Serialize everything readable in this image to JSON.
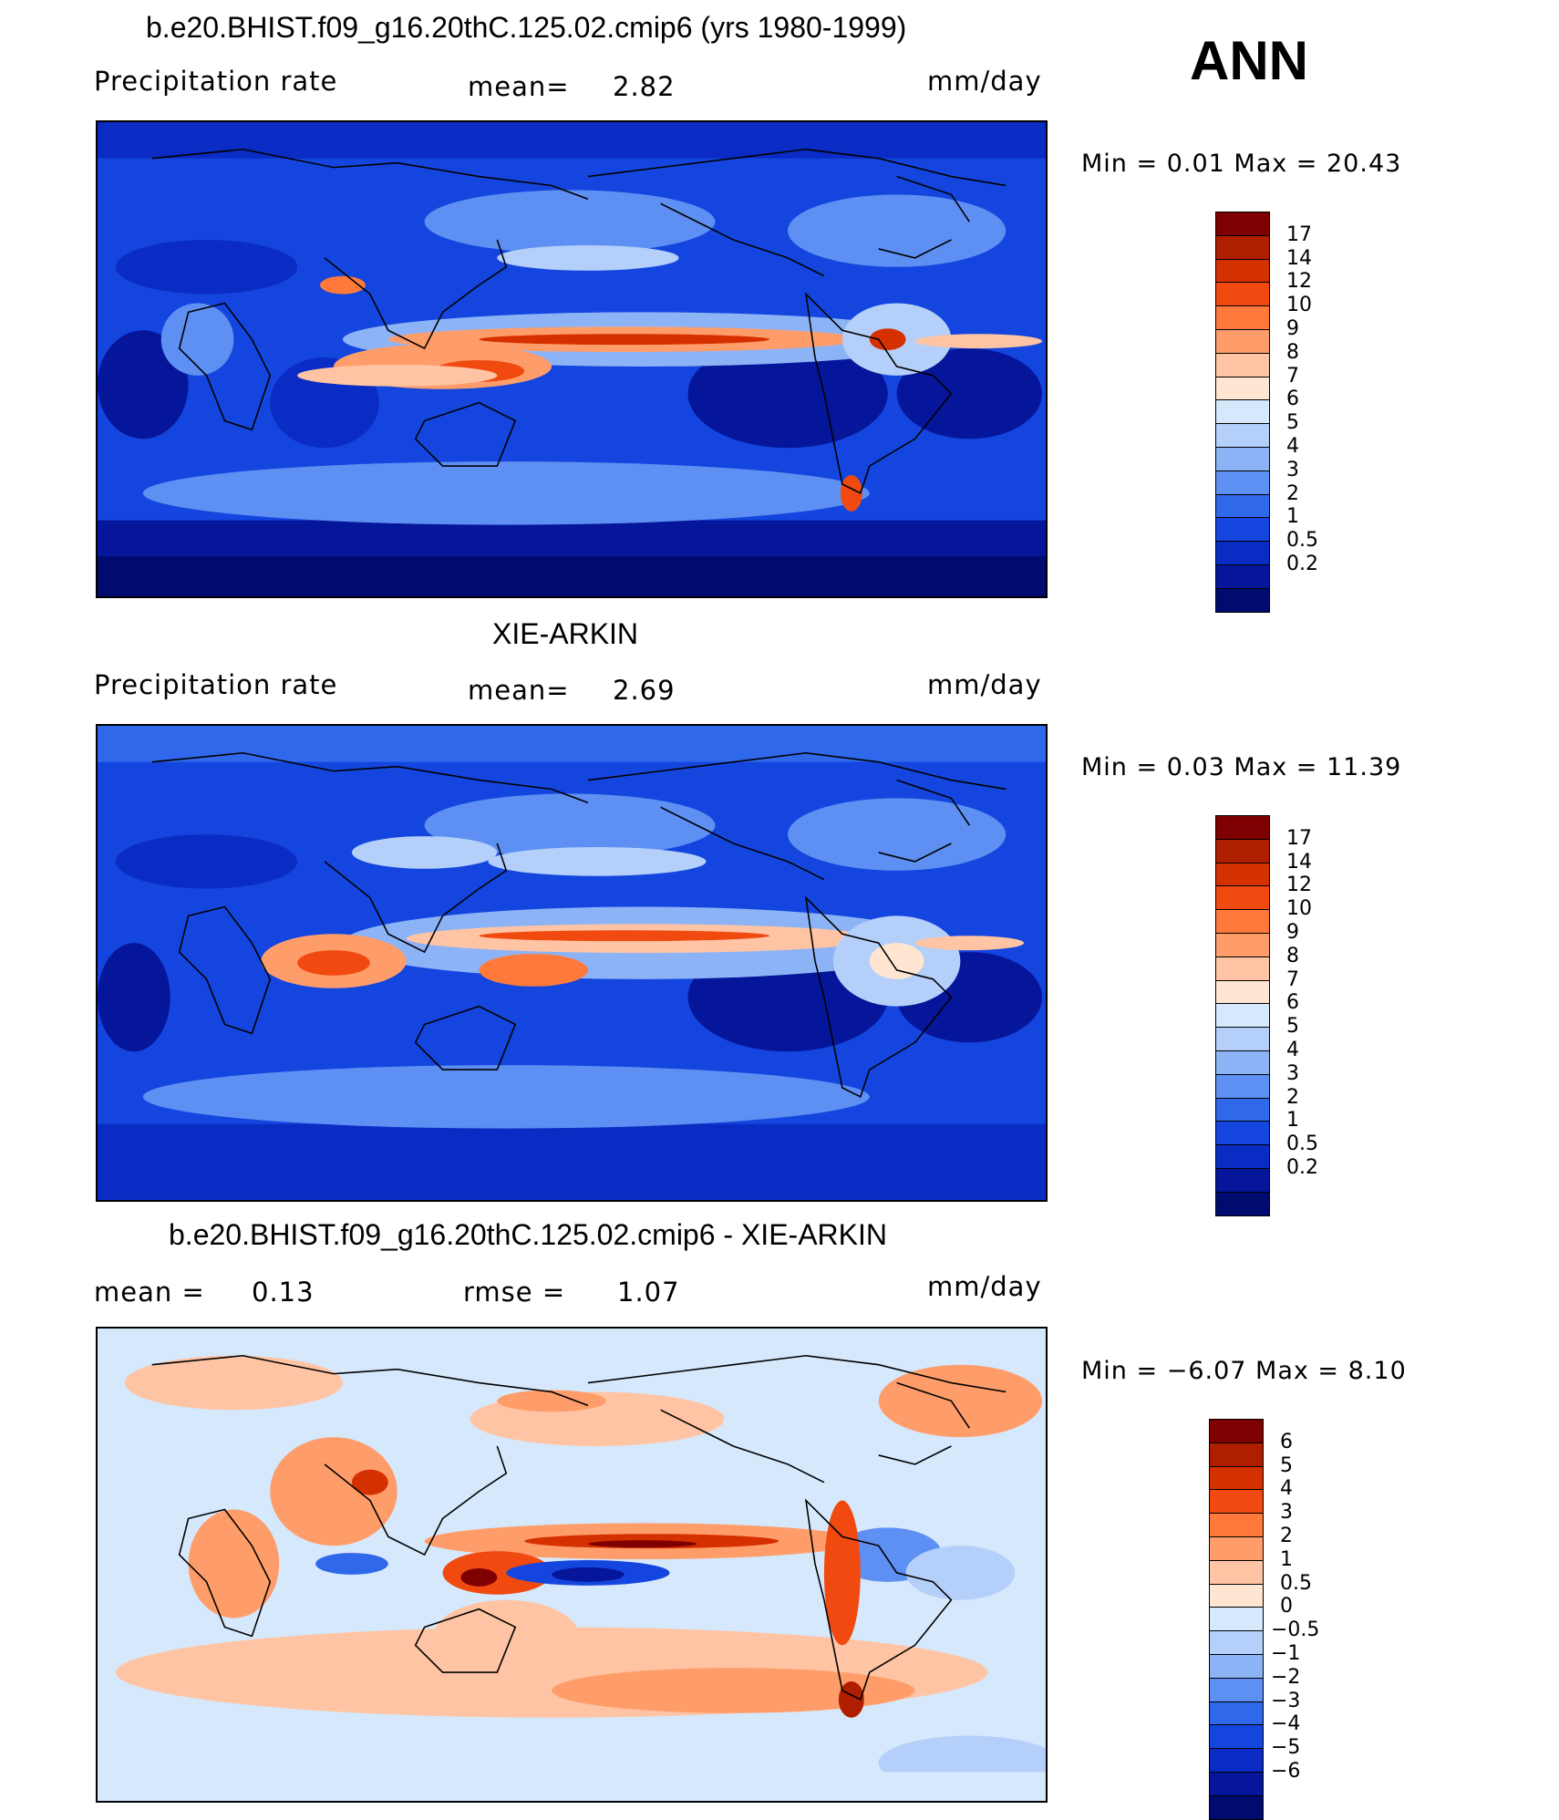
{
  "header": {
    "season": "ANN"
  },
  "panels": [
    {
      "title": "b.e20.BHIST.f09_g16.20thC.125.02.cmip6 (yrs 1980-1999)",
      "left_label": "Precipitation  rate",
      "mid_label": "mean=",
      "mid_value": "2.82",
      "right_label": "mm/day",
      "minmax": "Min  =     0.01  Max  =     20.43",
      "colorbar_ticks": [
        "17",
        "14",
        "12",
        "10",
        "9",
        "8",
        "7",
        "6",
        "5",
        "4",
        "3",
        "2",
        "1",
        "0.5",
        "0.2"
      ],
      "colors": [
        "#7f0000",
        "#b01e00",
        "#d53000",
        "#f04a10",
        "#ff7a3a",
        "#ff9d6a",
        "#ffc4a4",
        "#ffe6d2",
        "#d6e8fb",
        "#b4cffa",
        "#8db3f7",
        "#5e8ff2",
        "#2f68ea",
        "#1446df",
        "#0a2cc4",
        "#06169a",
        "#000b6f"
      ]
    },
    {
      "title": "XIE-ARKIN",
      "left_label": "Precipitation  rate",
      "mid_label": "mean=",
      "mid_value": "2.69",
      "right_label": "mm/day",
      "minmax": "Min  =     0.03  Max  =     11.39",
      "colorbar_ticks": [
        "17",
        "14",
        "12",
        "10",
        "9",
        "8",
        "7",
        "6",
        "5",
        "4",
        "3",
        "2",
        "1",
        "0.5",
        "0.2"
      ],
      "colors": [
        "#7f0000",
        "#b01e00",
        "#d53000",
        "#f04a10",
        "#ff7a3a",
        "#ff9d6a",
        "#ffc4a4",
        "#ffe6d2",
        "#d6e8fb",
        "#b4cffa",
        "#8db3f7",
        "#5e8ff2",
        "#2f68ea",
        "#1446df",
        "#0a2cc4",
        "#06169a",
        "#000b6f"
      ]
    },
    {
      "title": "b.e20.BHIST.f09_g16.20thC.125.02.cmip6 - XIE-ARKIN",
      "left_label": "mean  =",
      "left_value": "0.13",
      "mid_label": "rmse  =",
      "mid_value": "1.07",
      "right_label": "mm/day",
      "minmax": "Min  =   −6.07  Max  =     8.10",
      "colorbar_ticks": [
        "6",
        "5",
        "4",
        "3",
        "2",
        "1",
        "0.5",
        "0",
        "−0.5",
        "−1",
        "−2",
        "−3",
        "−4",
        "−5",
        "−6"
      ],
      "colors": [
        "#7f0000",
        "#b01e00",
        "#d53000",
        "#f04a10",
        "#ff7a3a",
        "#ff9d6a",
        "#ffc4a4",
        "#ffe6d2",
        "#d6e8fb",
        "#b4cffa",
        "#8db3f7",
        "#5e8ff2",
        "#2f68ea",
        "#1446df",
        "#0a2cc4",
        "#06169a",
        "#000b6f"
      ]
    }
  ]
}
